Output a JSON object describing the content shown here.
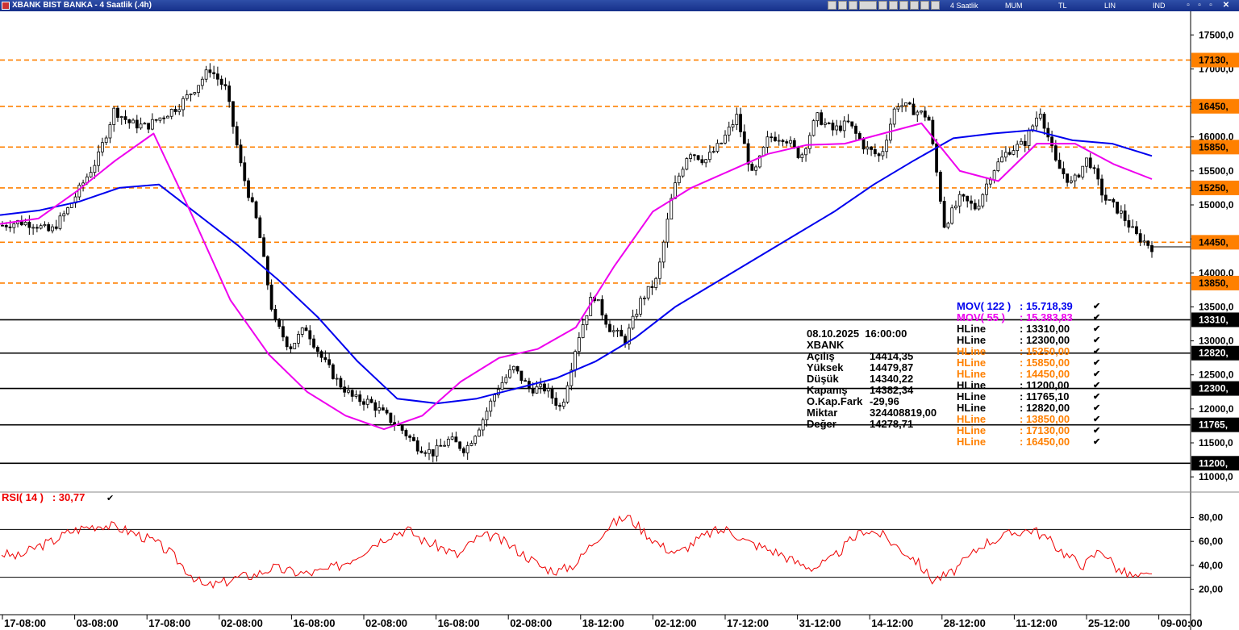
{
  "window": {
    "title": "XBANK BIST BANKA - 4 Saatlik (.4h)",
    "period": "4 Saatlik",
    "menu": [
      "MUM",
      "TL",
      "LIN",
      "IND"
    ]
  },
  "info_box": {
    "rows": [
      {
        "label": "08.10.2025  16:00:00",
        "value": ""
      },
      {
        "label": "XBANK",
        "value": ""
      },
      {
        "label": "Açılış",
        "value": "14414,35"
      },
      {
        "label": "Yüksek",
        "value": "14479,87"
      },
      {
        "label": "Düşük",
        "value": "14340,22"
      },
      {
        "label": "Kapanış",
        "value": "14382,34"
      },
      {
        "label": "O.Kap.Fark",
        "value": "-29,96"
      },
      {
        "label": "Miktar",
        "value": "324408819,00"
      },
      {
        "label": "Değer",
        "value": "14278,71"
      }
    ]
  },
  "indicator_legend": [
    {
      "name": "MOV( 122 )",
      "value": ": 15.718,39",
      "color": "#0000ee"
    },
    {
      "name": "MOV( 55 )",
      "value": ": 15.383,83",
      "color": "#ee00ee"
    },
    {
      "name": "HLine",
      "value": ": 13310,00",
      "color": "#000000"
    },
    {
      "name": "HLine",
      "value": ": 12300,00",
      "color": "#000000"
    },
    {
      "name": "HLine",
      "value": ": 15250,00",
      "color": "#ff8000"
    },
    {
      "name": "HLine",
      "value": ": 15850,00",
      "color": "#ff8000"
    },
    {
      "name": "HLine",
      "value": ": 14450,00",
      "color": "#ff8000"
    },
    {
      "name": "HLine",
      "value": ": 11200,00",
      "color": "#000000"
    },
    {
      "name": "HLine",
      "value": ": 11765,10",
      "color": "#000000"
    },
    {
      "name": "HLine",
      "value": ": 12820,00",
      "color": "#000000"
    },
    {
      "name": "HLine",
      "value": ": 13850,00",
      "color": "#ff8000"
    },
    {
      "name": "HLine",
      "value": ": 17130,00",
      "color": "#ff8000"
    },
    {
      "name": "HLine",
      "value": ": 16450,00",
      "color": "#ff8000"
    }
  ],
  "rsi_label": "RSI( 14 )   : 30,77",
  "colors": {
    "orange": "#ff8000",
    "mov122": "#0000ee",
    "mov55": "#ee00ee",
    "rsi": "#ee0000",
    "candle": "#000000"
  },
  "chart_data": {
    "type": "candlestick",
    "symbol": "XBANK",
    "interval": "4 Saatlik",
    "x_tick_labels": [
      "17-08:00",
      "03-08:00",
      "17-08:00",
      "02-08:00",
      "16-08:00",
      "02-08:00",
      "16-08:00",
      "02-08:00",
      "18-12:00",
      "02-12:00",
      "17-12:00",
      "31-12:00",
      "14-12:00",
      "28-12:00",
      "11-12:00",
      "25-12:00",
      "09-00:00"
    ],
    "price_axis": {
      "ylim": [
        10800,
        17800
      ],
      "ticks": [
        11000,
        11500,
        12000,
        12500,
        13000,
        13500,
        14000,
        14500,
        15000,
        15500,
        16000,
        16500,
        17000,
        17500
      ],
      "tick_labels": [
        "11000,0",
        "11500,0",
        "12000,0",
        "12500,0",
        "13000,0",
        "13500,0",
        "14000,0",
        "14500,0",
        "15000,0",
        "15500,0",
        "16000,0",
        "16500,0",
        "17000,0",
        "17500,0"
      ]
    },
    "hlines": [
      {
        "value": 17130,
        "label": "17130,",
        "color": "orange",
        "style": "dashed"
      },
      {
        "value": 16450,
        "label": "16450,",
        "color": "orange",
        "style": "dashed"
      },
      {
        "value": 15850,
        "label": "15850,",
        "color": "orange",
        "style": "dashed"
      },
      {
        "value": 15250,
        "label": "15250,",
        "color": "orange",
        "style": "dashed"
      },
      {
        "value": 14450,
        "label": "14450,",
        "color": "orange",
        "style": "dashed"
      },
      {
        "value": 13850,
        "label": "13850,",
        "color": "orange",
        "style": "dashed"
      },
      {
        "value": 13310,
        "label": "13310,",
        "color": "black",
        "style": "solid"
      },
      {
        "value": 12820,
        "label": "12820,",
        "color": "black",
        "style": "solid"
      },
      {
        "value": 12300,
        "label": "12300,",
        "color": "black",
        "style": "solid"
      },
      {
        "value": 11765,
        "label": "11765,",
        "color": "black",
        "style": "solid"
      },
      {
        "value": 11200,
        "label": "11200,",
        "color": "black",
        "style": "solid"
      }
    ],
    "last_price": 14382.34,
    "close_path": [
      14700,
      14750,
      14720,
      14600,
      14900,
      15300,
      15700,
      16400,
      16200,
      16150,
      16300,
      16450,
      16700,
      17000,
      16700,
      15500,
      14700,
      13300,
      12900,
      13200,
      12750,
      12400,
      12150,
      12100,
      11900,
      11700,
      11450,
      11350,
      11550,
      11400,
      11800,
      12300,
      12600,
      12300,
      12300,
      12000,
      13000,
      13700,
      13200,
      13000,
      13600,
      13900,
      15200,
      15800,
      15650,
      15900,
      16300,
      15400,
      16000,
      16000,
      15700,
      16300,
      16100,
      16200,
      15850,
      15700,
      16500,
      16400,
      16300,
      14700,
      15100,
      14950,
      15500,
      15800,
      15900,
      16400,
      15600,
      15300,
      15700,
      15100,
      14900,
      14550,
      14380
    ],
    "mov122_path": [
      14850,
      14920,
      15050,
      15250,
      15300,
      14850,
      14400,
      13900,
      13350,
      12700,
      12150,
      12080,
      12150,
      12300,
      12450,
      12700,
      13050,
      13500,
      13850,
      14200,
      14550,
      14900,
      15300,
      15650,
      15980,
      16050,
      16100,
      15950,
      15900,
      15720
    ],
    "mov55_path": [
      14720,
      14800,
      15200,
      15650,
      16050,
      14850,
      13600,
      12800,
      12250,
      11900,
      11700,
      11900,
      12400,
      12750,
      12880,
      13200,
      14100,
      14900,
      15250,
      15500,
      15750,
      15880,
      15900,
      16050,
      16200,
      15500,
      15350,
      15900,
      15900,
      15600,
      15380
    ],
    "rsi": {
      "ylim": [
        0,
        100
      ],
      "ticks": [
        20,
        40,
        60,
        80
      ],
      "tick_labels": [
        "20,00",
        "40,00",
        "60,00",
        "80,00"
      ],
      "bands": [
        70,
        30
      ],
      "last_value": 30.77,
      "path": [
        50,
        47,
        55,
        60,
        68,
        72,
        74,
        71,
        66,
        60,
        50,
        35,
        22,
        25,
        30,
        32,
        38,
        35,
        33,
        35,
        40,
        48,
        58,
        66,
        70,
        60,
        55,
        48,
        62,
        65,
        57,
        48,
        38,
        35,
        42,
        60,
        74,
        81,
        68,
        56,
        50,
        60,
        68,
        70,
        60,
        55,
        50,
        42,
        38,
        44,
        58,
        70,
        66,
        55,
        45,
        28,
        32,
        44,
        58,
        63,
        68,
        70,
        60,
        48,
        40,
        54,
        36,
        30,
        31
      ],
      "color": "rsi"
    }
  }
}
